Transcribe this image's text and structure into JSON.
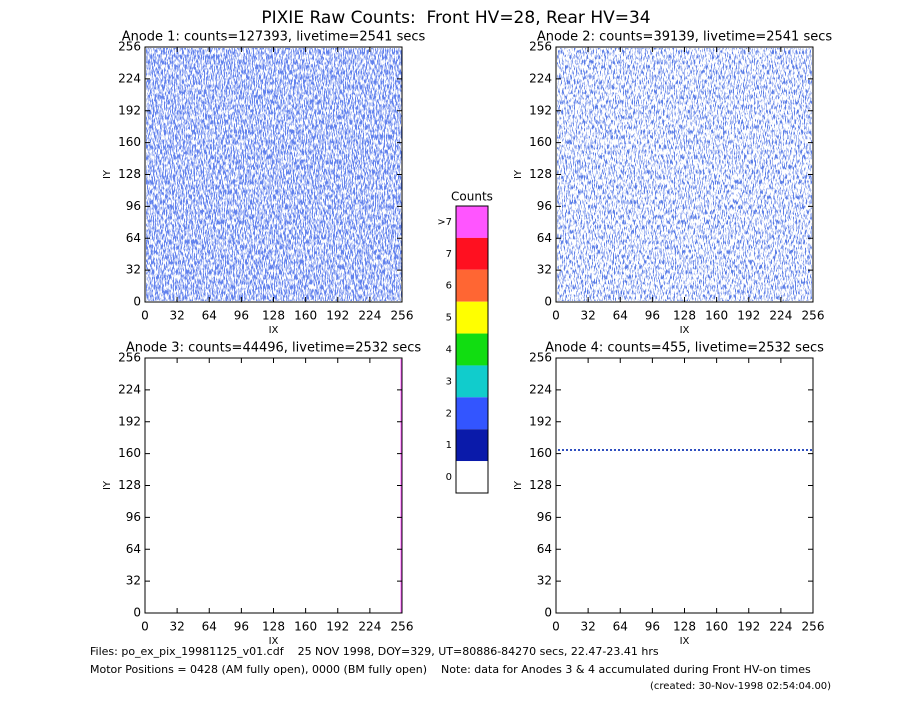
{
  "title": "PIXIE Raw Counts:  Front HV=28, Rear HV=34",
  "chart_data": [
    {
      "type": "heatmap",
      "title": "Anode 1: counts=127393, livetime=2541 secs",
      "xlabel": "IX",
      "ylabel": "IY",
      "xlim": [
        0,
        256
      ],
      "ylim": [
        0,
        256
      ],
      "xticks": [
        0,
        32,
        64,
        96,
        128,
        160,
        192,
        224,
        256
      ],
      "yticks": [
        0,
        32,
        64,
        96,
        128,
        160,
        192,
        224,
        256
      ]
    },
    {
      "type": "heatmap",
      "title": "Anode 2: counts=39139, livetime=2541 secs",
      "xlabel": "IX",
      "ylabel": "IY",
      "xlim": [
        0,
        256
      ],
      "ylim": [
        0,
        256
      ],
      "xticks": [
        0,
        32,
        64,
        96,
        128,
        160,
        192,
        224,
        256
      ],
      "yticks": [
        0,
        32,
        64,
        96,
        128,
        160,
        192,
        224,
        256
      ]
    },
    {
      "type": "heatmap",
      "title": "Anode 3: counts=44496, livetime=2532 secs",
      "xlabel": "IX",
      "ylabel": "IY",
      "xlim": [
        0,
        256
      ],
      "ylim": [
        0,
        256
      ],
      "xticks": [
        0,
        32,
        64,
        96,
        128,
        160,
        192,
        224,
        256
      ],
      "yticks": [
        0,
        32,
        64,
        96,
        128,
        160,
        192,
        224,
        256
      ]
    },
    {
      "type": "heatmap",
      "title": "Anode 4: counts=455, livetime=2532 secs",
      "xlabel": "IX",
      "ylabel": "IY",
      "xlim": [
        0,
        256
      ],
      "ylim": [
        0,
        256
      ],
      "xticks": [
        0,
        32,
        64,
        96,
        128,
        160,
        192,
        224,
        256
      ],
      "yticks": [
        0,
        32,
        64,
        96,
        128,
        160,
        192,
        224,
        256
      ]
    }
  ],
  "colorbar": {
    "title": "Counts",
    "labels": [
      ">7",
      "7",
      "6",
      "5",
      "4",
      "3",
      "2",
      "1",
      "0"
    ],
    "colors": [
      "#ff55ff",
      "#ff1020",
      "#ff6633",
      "#ffff00",
      "#11dd11",
      "#11cccc",
      "#3355ff",
      "#0a1aaa",
      "#ffffff"
    ]
  },
  "footer": [
    "Files: po_ex_pix_19981125_v01.cdf    25 NOV 1998, DOY=329, UT=80886-84270 secs, 22.47-23.41 hrs",
    "Motor Positions = 0428 (AM fully open), 0000 (BM fully open)    Note: data for Anodes 3 & 4 accumulated during Front HV-on times",
    "(created: 30-Nov-1998 02:54:04.00)"
  ]
}
